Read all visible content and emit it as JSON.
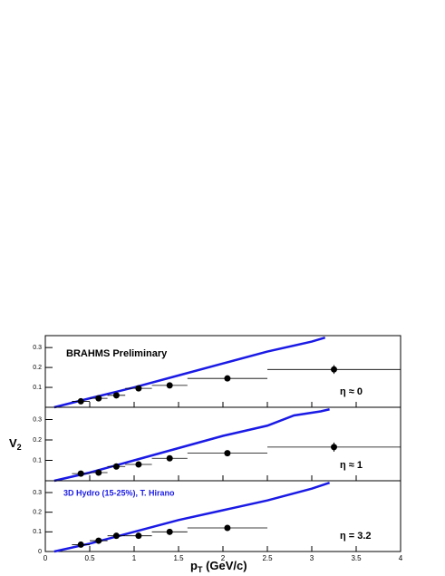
{
  "chart_data": [
    {
      "type": "scatter",
      "annotation": "BRAHMS Preliminary",
      "eta_label": "η ≈ 0",
      "ylim": [
        0,
        0.36
      ],
      "yticks": [
        0.1,
        0.2,
        0.3
      ],
      "x": [
        0.4,
        0.6,
        0.8,
        1.05,
        1.4,
        2.05,
        3.25
      ],
      "values": [
        0.03,
        0.045,
        0.06,
        0.095,
        0.11,
        0.145,
        0.19
      ],
      "xerr": [
        0.1,
        0.1,
        0.1,
        0.15,
        0.2,
        0.45,
        0.75
      ],
      "yerr": [
        0.005,
        0.005,
        0.006,
        0.006,
        0.007,
        0.008,
        0.022
      ],
      "color": "#000000",
      "model": {
        "x": [
          0.1,
          0.5,
          1.0,
          1.5,
          2.0,
          2.5,
          3.0,
          3.15
        ],
        "values": [
          0.0,
          0.045,
          0.1,
          0.16,
          0.22,
          0.28,
          0.33,
          0.35
        ],
        "color": "#1a1ae6"
      }
    },
    {
      "type": "scatter",
      "eta_label": "η ≈ 1",
      "ylabel": {
        "main": "V",
        "sub": "2"
      },
      "ylim": [
        0,
        0.36
      ],
      "yticks": [
        0.1,
        0.2,
        0.3
      ],
      "x": [
        0.4,
        0.6,
        0.8,
        1.05,
        1.4,
        2.05,
        3.25
      ],
      "values": [
        0.035,
        0.04,
        0.07,
        0.08,
        0.11,
        0.135,
        0.165
      ],
      "xerr": [
        0.1,
        0.1,
        0.1,
        0.15,
        0.2,
        0.45,
        0.75
      ],
      "yerr": [
        0.005,
        0.005,
        0.006,
        0.006,
        0.007,
        0.008,
        0.022
      ],
      "color": "#000000",
      "model": {
        "x": [
          0.1,
          0.5,
          1.0,
          1.5,
          2.0,
          2.5,
          2.8,
          3.1,
          3.2
        ],
        "values": [
          0.0,
          0.04,
          0.1,
          0.16,
          0.22,
          0.27,
          0.32,
          0.34,
          0.35
        ],
        "color": "#1a1ae6"
      }
    },
    {
      "type": "scatter",
      "model_label": "3D Hydro (15-25%), T. Hirano",
      "eta_label": "η = 3.2",
      "xlabel": {
        "main": "p",
        "sub": "T",
        "rest": " (GeV/c)"
      },
      "xlim": [
        0,
        4
      ],
      "xticks": [
        0,
        0.5,
        1,
        1.5,
        2,
        2.5,
        3,
        3.5,
        4
      ],
      "ylim": [
        0,
        0.36
      ],
      "yticks": [
        0,
        0.1,
        0.2,
        0.3
      ],
      "x": [
        0.4,
        0.6,
        0.8,
        1.05,
        1.4,
        2.05
      ],
      "values": [
        0.035,
        0.055,
        0.08,
        0.08,
        0.1,
        0.12
      ],
      "xerr": [
        0.1,
        0.1,
        0.1,
        0.15,
        0.2,
        0.45
      ],
      "yerr": [
        0.005,
        0.005,
        0.006,
        0.006,
        0.007,
        0.012
      ],
      "color": "#000000",
      "model": {
        "x": [
          0.1,
          0.5,
          1.0,
          1.5,
          2.0,
          2.5,
          3.0,
          3.2
        ],
        "values": [
          0.0,
          0.04,
          0.1,
          0.16,
          0.21,
          0.26,
          0.32,
          0.35
        ],
        "color": "#1a1ae6"
      }
    }
  ]
}
